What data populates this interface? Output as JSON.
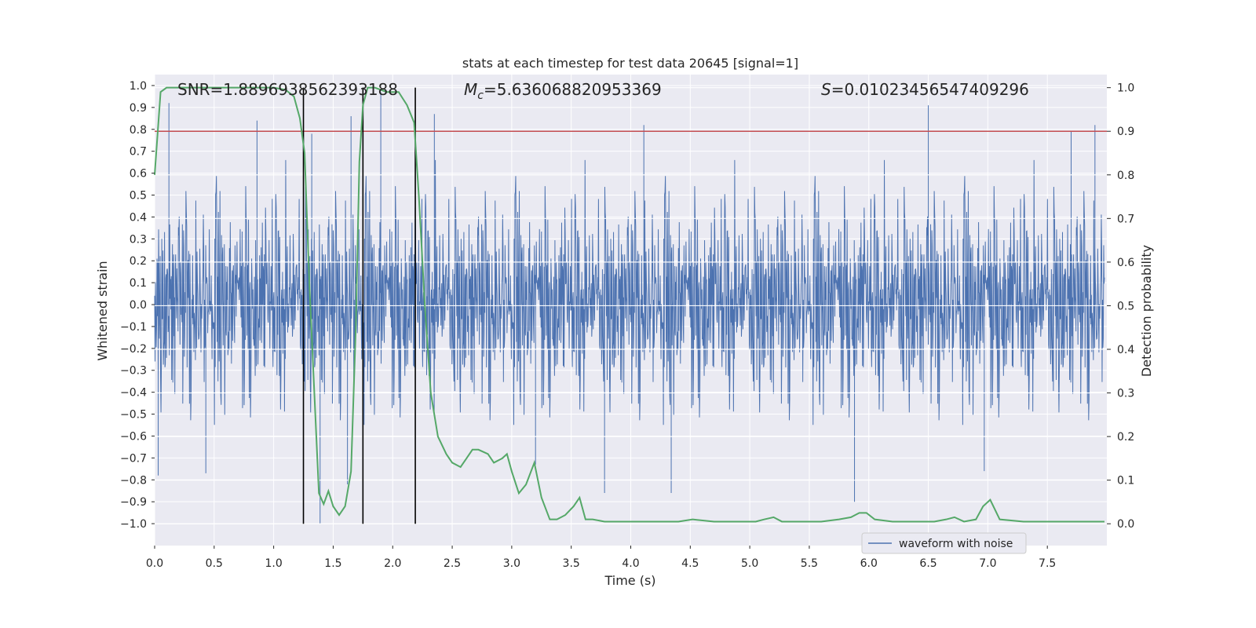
{
  "chart_data": {
    "type": "line",
    "title": "stats at each timestep for test data 20645 [signal=1]",
    "xlabel": "Time (s)",
    "ylabel_left": "Whitened strain",
    "ylabel_right": "Detection probability",
    "xlim": [
      0.0,
      8.0
    ],
    "ylim_left": [
      -1.1,
      1.05
    ],
    "ylim_right": [
      -0.05,
      1.03
    ],
    "x_ticks": [
      "0.0",
      "0.5",
      "1.0",
      "1.5",
      "2.0",
      "2.5",
      "3.0",
      "3.5",
      "4.0",
      "4.5",
      "5.0",
      "5.5",
      "6.0",
      "6.5",
      "7.0",
      "7.5"
    ],
    "x_tick_values": [
      0.0,
      0.5,
      1.0,
      1.5,
      2.0,
      2.5,
      3.0,
      3.5,
      4.0,
      4.5,
      5.0,
      5.5,
      6.0,
      6.5,
      7.0,
      7.5
    ],
    "y_left_ticks": [
      "1.0",
      "0.9",
      "0.8",
      "0.7",
      "0.6",
      "0.5",
      "0.4",
      "0.3",
      "0.2",
      "0.1",
      "0.0",
      "−0.1",
      "−0.2",
      "−0.3",
      "−0.4",
      "−0.5",
      "−0.6",
      "−0.7",
      "−0.8",
      "−0.9",
      "−1.0"
    ],
    "y_left_tick_values": [
      1.0,
      0.9,
      0.8,
      0.7,
      0.6,
      0.5,
      0.4,
      0.3,
      0.2,
      0.1,
      0.0,
      -0.1,
      -0.2,
      -0.3,
      -0.4,
      -0.5,
      -0.6,
      -0.7,
      -0.8,
      -0.9,
      -1.0
    ],
    "y_right_ticks": [
      "1.0",
      "0.9",
      "0.8",
      "0.7",
      "0.6",
      "0.5",
      "0.4",
      "0.3",
      "0.2",
      "0.1",
      "0.0"
    ],
    "y_right_tick_values": [
      1.0,
      0.9,
      0.8,
      0.7,
      0.6,
      0.5,
      0.4,
      0.3,
      0.2,
      0.1,
      0.0
    ],
    "annotations": {
      "snr": "SNR=1.8896938562393188",
      "mc_symbol": "M",
      "mc_sub": "c",
      "mc_value": "=5.636068820953369",
      "s_symbol": "S",
      "s_value": "=0.01023456547409296"
    },
    "legend": {
      "label": "waveform with noise",
      "placement": "lower-right"
    },
    "threshold": {
      "value": 0.9,
      "axis": "right",
      "color": "#c44e52"
    },
    "vertical_lines": [
      1.25,
      1.75,
      2.19
    ],
    "series": [
      {
        "name": "waveform with noise",
        "axis": "left",
        "color": "#4c72b0",
        "style": "noise",
        "typical_amplitude": 0.38,
        "spikes": [
          {
            "x": 0.03,
            "y": -0.78
          },
          {
            "x": 0.12,
            "y": 0.92
          },
          {
            "x": 0.43,
            "y": -0.77
          },
          {
            "x": 0.86,
            "y": 0.84
          },
          {
            "x": 1.32,
            "y": 0.78
          },
          {
            "x": 1.39,
            "y": -1.0
          },
          {
            "x": 1.62,
            "y": -0.82
          },
          {
            "x": 1.65,
            "y": 0.86
          },
          {
            "x": 1.9,
            "y": 0.97
          },
          {
            "x": 2.35,
            "y": 0.87
          },
          {
            "x": 3.2,
            "y": -0.73
          },
          {
            "x": 3.78,
            "y": -0.86
          },
          {
            "x": 4.11,
            "y": 0.82
          },
          {
            "x": 4.34,
            "y": -0.86
          },
          {
            "x": 5.88,
            "y": -0.9
          },
          {
            "x": 6.5,
            "y": 0.91
          },
          {
            "x": 6.97,
            "y": -0.76
          },
          {
            "x": 7.7,
            "y": 0.79
          },
          {
            "x": 7.9,
            "y": 0.82
          }
        ]
      },
      {
        "name": "detection probability",
        "axis": "right",
        "color": "#55a868",
        "x": [
          0.0,
          0.05,
          0.1,
          0.2,
          0.4,
          0.6,
          0.8,
          1.0,
          1.1,
          1.17,
          1.22,
          1.26,
          1.3,
          1.35,
          1.38,
          1.42,
          1.46,
          1.5,
          1.55,
          1.6,
          1.65,
          1.69,
          1.72,
          1.75,
          1.79,
          1.85,
          1.95,
          2.05,
          2.12,
          2.18,
          2.22,
          2.27,
          2.32,
          2.38,
          2.45,
          2.5,
          2.57,
          2.62,
          2.67,
          2.72,
          2.8,
          2.85,
          2.92,
          2.96,
          3.0,
          3.06,
          3.12,
          3.19,
          3.25,
          3.32,
          3.38,
          3.45,
          3.52,
          3.57,
          3.62,
          3.68,
          3.78,
          3.9,
          4.05,
          4.2,
          4.4,
          4.52,
          4.7,
          4.9,
          5.05,
          5.12,
          5.2,
          5.27,
          5.4,
          5.6,
          5.75,
          5.85,
          5.92,
          5.98,
          6.05,
          6.2,
          6.4,
          6.55,
          6.65,
          6.72,
          6.8,
          6.9,
          6.96,
          7.02,
          7.1,
          7.3,
          7.5,
          7.7,
          7.9,
          7.98
        ],
        "y": [
          0.8,
          0.99,
          1.0,
          1.0,
          1.0,
          1.0,
          1.0,
          1.0,
          0.995,
          0.98,
          0.93,
          0.85,
          0.55,
          0.25,
          0.07,
          0.045,
          0.075,
          0.04,
          0.02,
          0.04,
          0.12,
          0.45,
          0.83,
          0.96,
          1.0,
          1.0,
          0.99,
          0.99,
          0.96,
          0.92,
          0.75,
          0.5,
          0.3,
          0.2,
          0.16,
          0.14,
          0.13,
          0.15,
          0.17,
          0.17,
          0.16,
          0.14,
          0.15,
          0.16,
          0.12,
          0.07,
          0.09,
          0.14,
          0.06,
          0.01,
          0.01,
          0.02,
          0.04,
          0.06,
          0.01,
          0.01,
          0.005,
          0.005,
          0.005,
          0.005,
          0.005,
          0.01,
          0.005,
          0.005,
          0.005,
          0.01,
          0.015,
          0.005,
          0.005,
          0.005,
          0.01,
          0.015,
          0.025,
          0.025,
          0.01,
          0.005,
          0.005,
          0.005,
          0.01,
          0.015,
          0.005,
          0.01,
          0.04,
          0.055,
          0.01,
          0.005,
          0.005,
          0.005,
          0.005,
          0.005
        ]
      }
    ]
  }
}
